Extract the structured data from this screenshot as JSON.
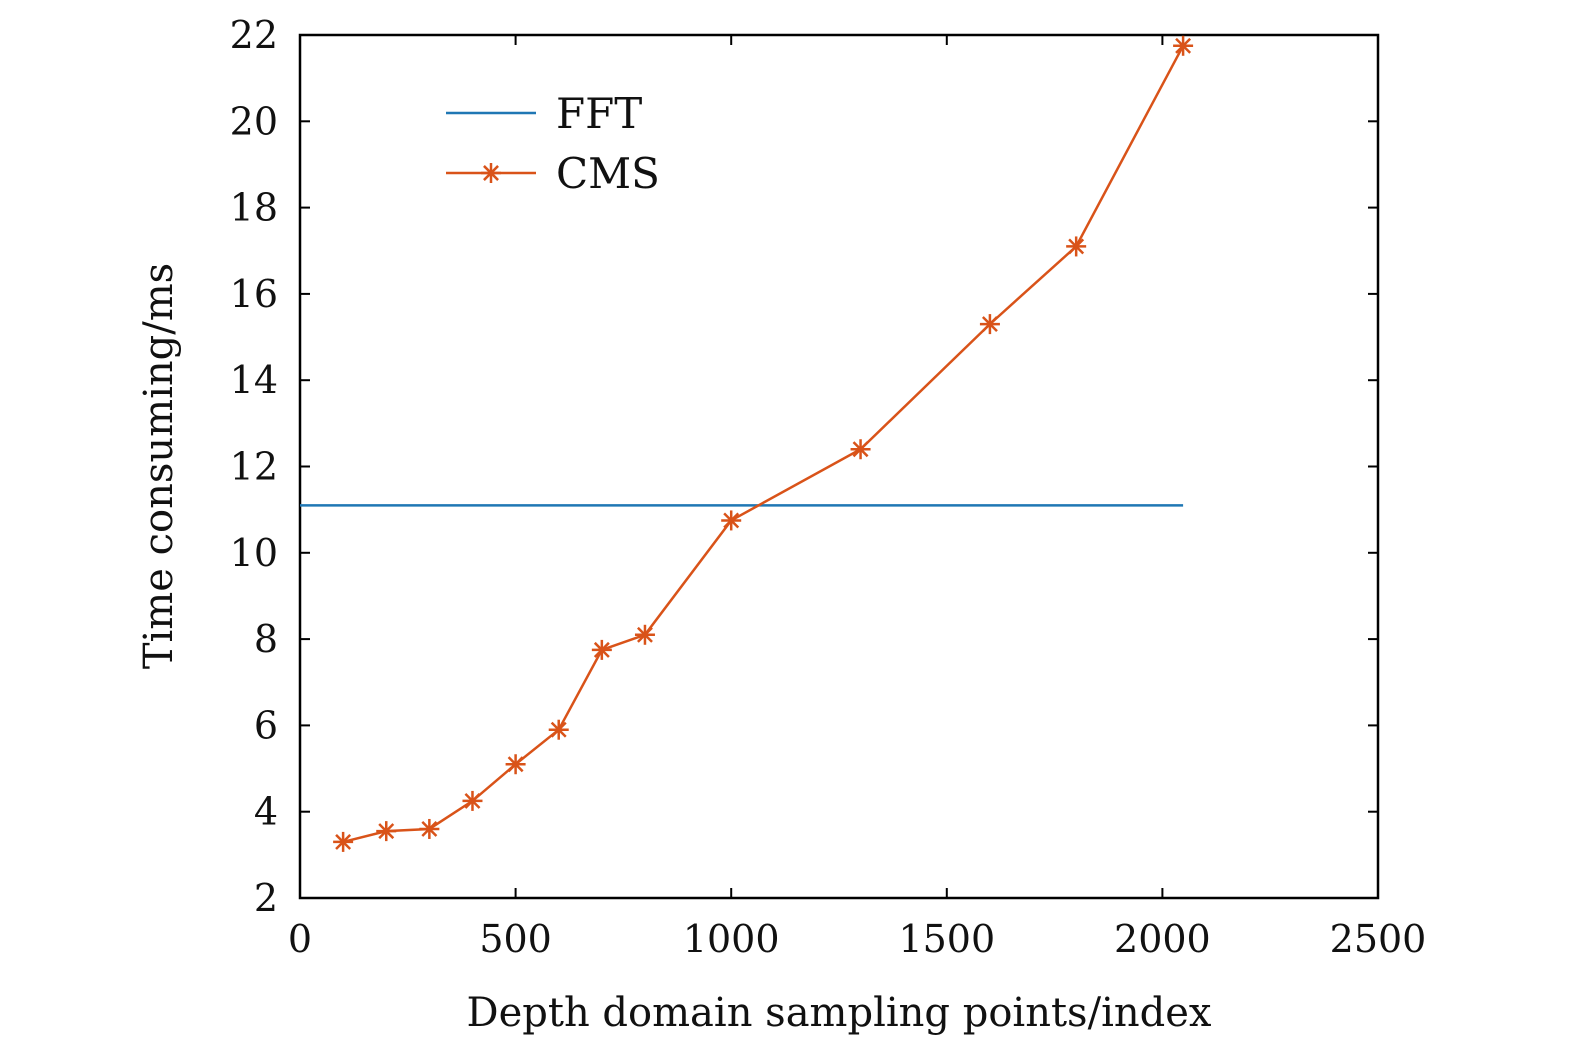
{
  "chart_data": {
    "type": "line",
    "title": "",
    "xlabel": "Depth domain sampling points/index",
    "ylabel": "Time consuming/ms",
    "xlim": [
      0,
      2500
    ],
    "ylim": [
      2,
      22
    ],
    "xticks": [
      0,
      500,
      1000,
      1500,
      2000,
      2500
    ],
    "yticks": [
      2,
      4,
      6,
      8,
      10,
      12,
      14,
      16,
      18,
      20,
      22
    ],
    "grid": false,
    "legend_position": "top-left",
    "series": [
      {
        "name": "FFT",
        "color": "#1f77b4",
        "marker": "none",
        "x": [
          0,
          2048
        ],
        "y": [
          11.1,
          11.1
        ]
      },
      {
        "name": "CMS",
        "color": "#d95319",
        "marker": "asterisk",
        "x": [
          100,
          200,
          300,
          400,
          500,
          600,
          700,
          800,
          1000,
          1300,
          1600,
          1800,
          2048
        ],
        "y": [
          3.3,
          3.55,
          3.6,
          4.25,
          5.1,
          5.9,
          7.75,
          8.1,
          10.75,
          12.4,
          15.3,
          17.1,
          21.75
        ]
      }
    ]
  }
}
